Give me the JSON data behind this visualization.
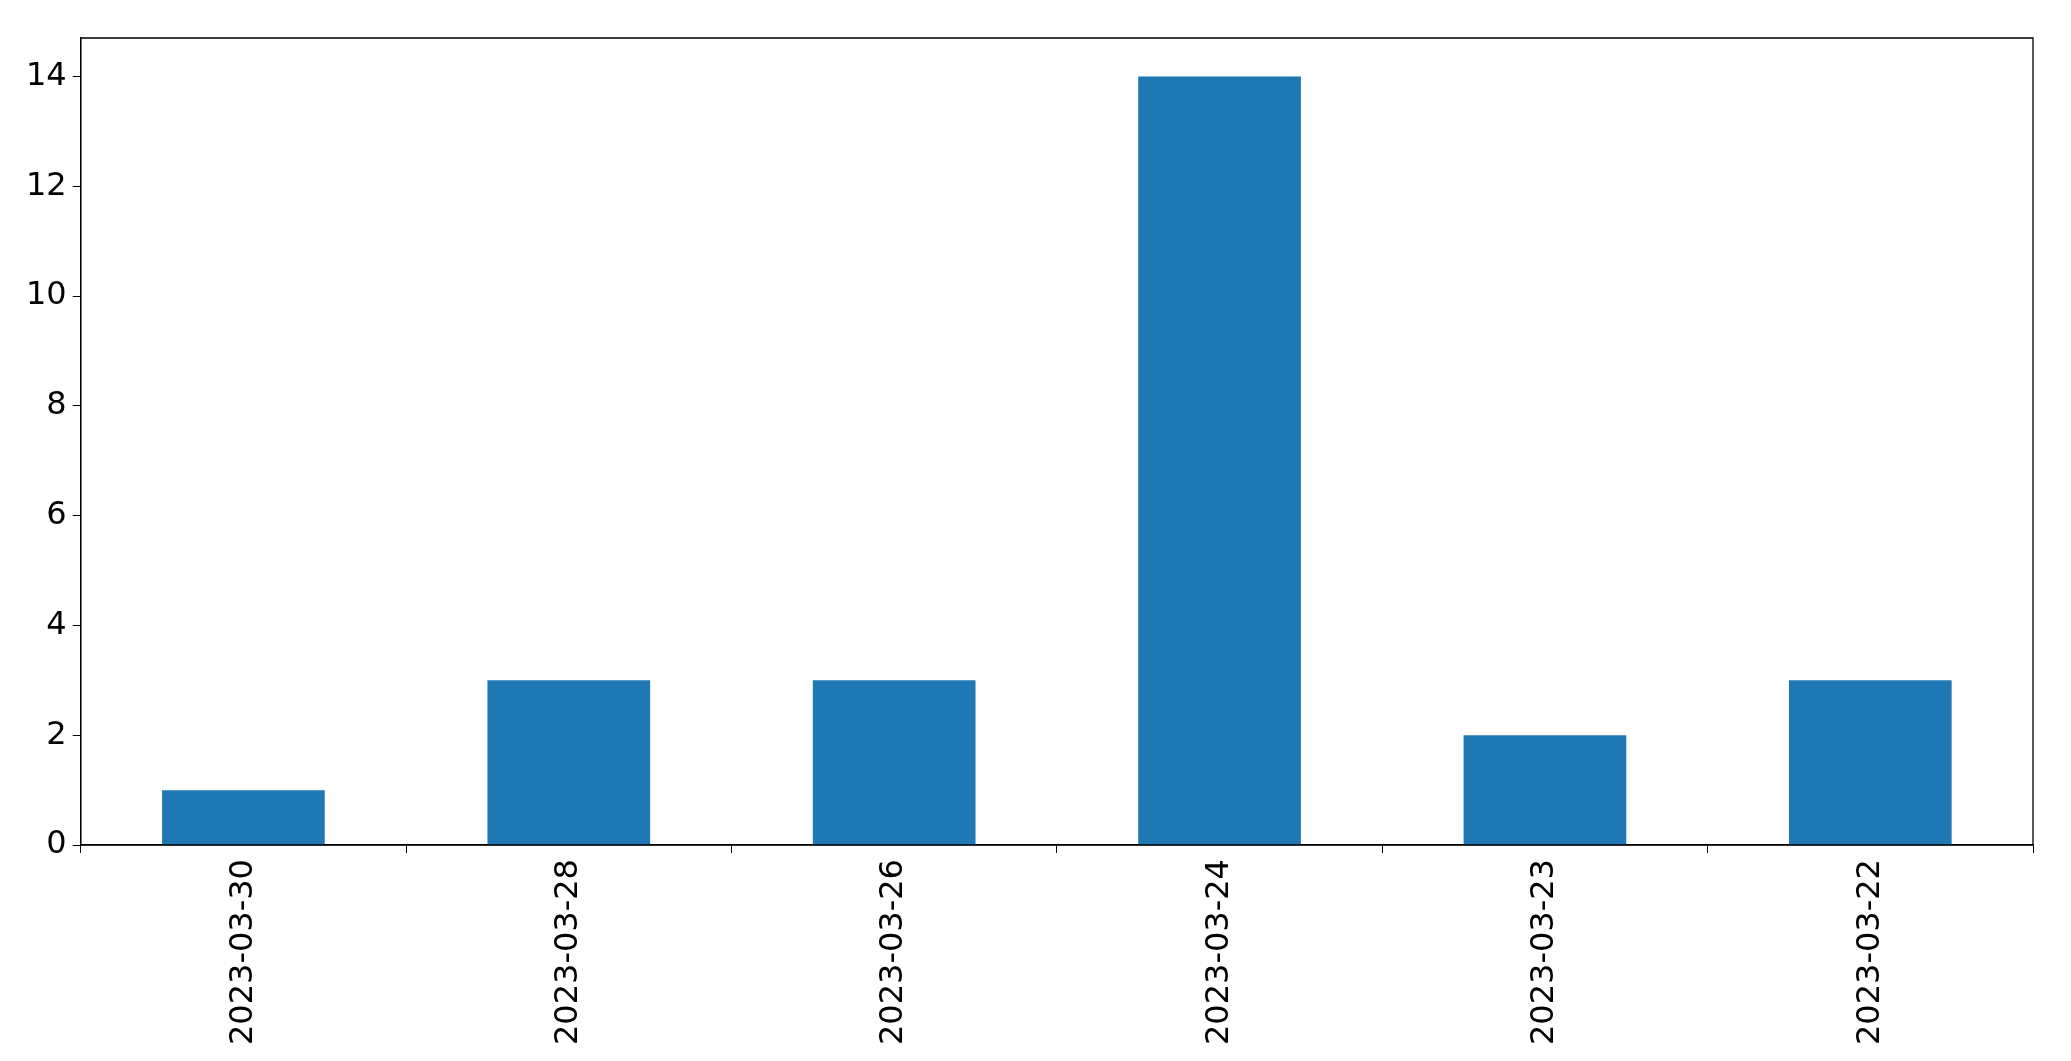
{
  "chart_data": {
    "type": "bar",
    "categories": [
      "2023-03-30",
      "2023-03-28",
      "2023-03-26",
      "2023-03-24",
      "2023-03-23",
      "2023-03-22"
    ],
    "values": [
      1,
      3,
      3,
      14,
      2,
      3
    ],
    "color": "#1f77b4",
    "ylim": [
      0,
      14.7
    ],
    "yticks": [
      0,
      2,
      4,
      6,
      8,
      10,
      12,
      14
    ],
    "grid": false,
    "legend": false
  }
}
